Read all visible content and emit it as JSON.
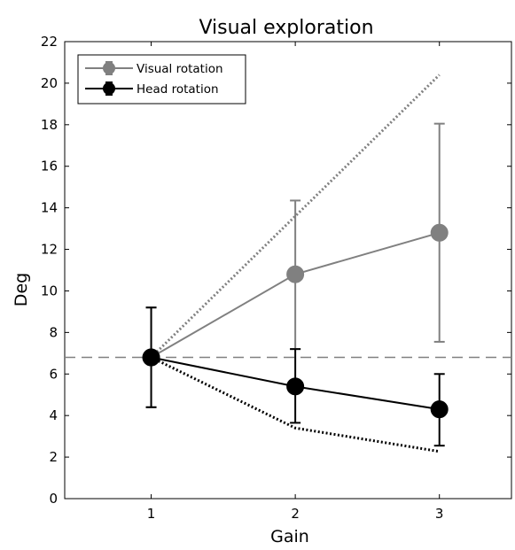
{
  "chart_data": {
    "type": "line",
    "title": "Visual exploration",
    "xlabel": "Gain",
    "ylabel": "Deg",
    "x": [
      1,
      2,
      3
    ],
    "xlim": [
      0.4,
      3.5
    ],
    "ylim": [
      0,
      22
    ],
    "xticks": [
      "1",
      "2",
      "3"
    ],
    "yticks": [
      "0",
      "2",
      "4",
      "6",
      "8",
      "10",
      "12",
      "14",
      "16",
      "18",
      "20",
      "22"
    ],
    "grid": false,
    "legend_position": "top-left",
    "series": [
      {
        "name": "Visual rotation",
        "color": "#808080",
        "values": [
          6.8,
          10.8,
          12.8
        ],
        "error_low": [
          4.4,
          7.2,
          7.55
        ],
        "error_high": [
          9.2,
          14.35,
          18.05
        ]
      },
      {
        "name": "Head rotation",
        "color": "#000000",
        "values": [
          6.8,
          5.4,
          4.3
        ],
        "error_low": [
          4.4,
          3.65,
          2.55
        ],
        "error_high": [
          9.2,
          7.2,
          6.0
        ]
      }
    ],
    "reference_lines": [
      {
        "kind": "horizontal-dashed",
        "y": 6.8,
        "color": "#808080"
      },
      {
        "kind": "dotted",
        "color": "#808080",
        "x": [
          1,
          3
        ],
        "y": [
          6.8,
          20.4
        ]
      },
      {
        "kind": "dotted",
        "color": "#000000",
        "x": [
          1,
          2,
          3
        ],
        "y": [
          6.8,
          3.4,
          2.27
        ]
      }
    ]
  }
}
